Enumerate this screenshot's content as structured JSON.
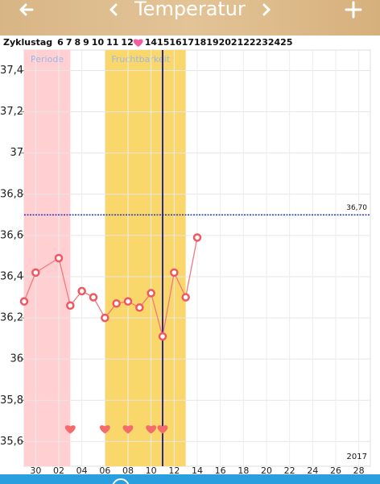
{
  "header": {
    "title": "Temperatur"
  },
  "cycle_row": {
    "label": "Zyklustag",
    "days_before": [
      "6",
      "7",
      "8",
      "9",
      "10",
      "11",
      "12"
    ],
    "days_after": [
      "14",
      "15",
      "16",
      "17",
      "18",
      "19",
      "20",
      "21",
      "22",
      "23",
      "24",
      "25"
    ]
  },
  "chart_data": {
    "type": "line",
    "x": [
      -1,
      0,
      2,
      3,
      4,
      5,
      6,
      7,
      8,
      9,
      10,
      11,
      12,
      13,
      14
    ],
    "values": [
      36.28,
      36.42,
      36.49,
      36.26,
      36.33,
      36.3,
      36.2,
      36.27,
      36.28,
      36.25,
      36.32,
      36.11,
      36.42,
      36.3,
      36.59
    ],
    "color": "#f07a7a",
    "xlim": [
      -1,
      29
    ],
    "xticks": [
      {
        "value": 0,
        "label": "30"
      },
      {
        "value": 2,
        "label": "02"
      },
      {
        "value": 4,
        "label": "04"
      },
      {
        "value": 6,
        "label": "06"
      },
      {
        "value": 8,
        "label": "08"
      },
      10,
      12,
      14,
      16,
      18,
      20,
      22,
      24,
      26,
      28
    ],
    "ylim": [
      35.48,
      37.5
    ],
    "yticks": [
      {
        "value": 35.6,
        "label": "35,6"
      },
      {
        "value": 35.8,
        "label": "35,8"
      },
      36,
      {
        "value": 36.2,
        "label": "36,2"
      },
      {
        "value": 36.4,
        "label": "36,4"
      },
      {
        "value": 36.6,
        "label": "36,6"
      },
      {
        "value": 36.8,
        "label": "36,8"
      },
      37,
      {
        "value": 37.2,
        "label": "37,2"
      },
      {
        "value": 37.4,
        "label": "37,4"
      }
    ],
    "grid": true,
    "bands": [
      {
        "label": "Periode",
        "from": -1,
        "to": 3,
        "color": "#ffcfd2",
        "label_color": "#9bb8e8"
      },
      {
        "label": "Fruchtbarkeit",
        "from": 6,
        "to": 13,
        "color": "#f9d76a",
        "label_color": "#9bb8e8"
      }
    ],
    "today": 11,
    "reference": {
      "value": 36.7,
      "label": "36,70"
    },
    "hearts": [
      3,
      6,
      8,
      10,
      11
    ],
    "year": "2017"
  }
}
